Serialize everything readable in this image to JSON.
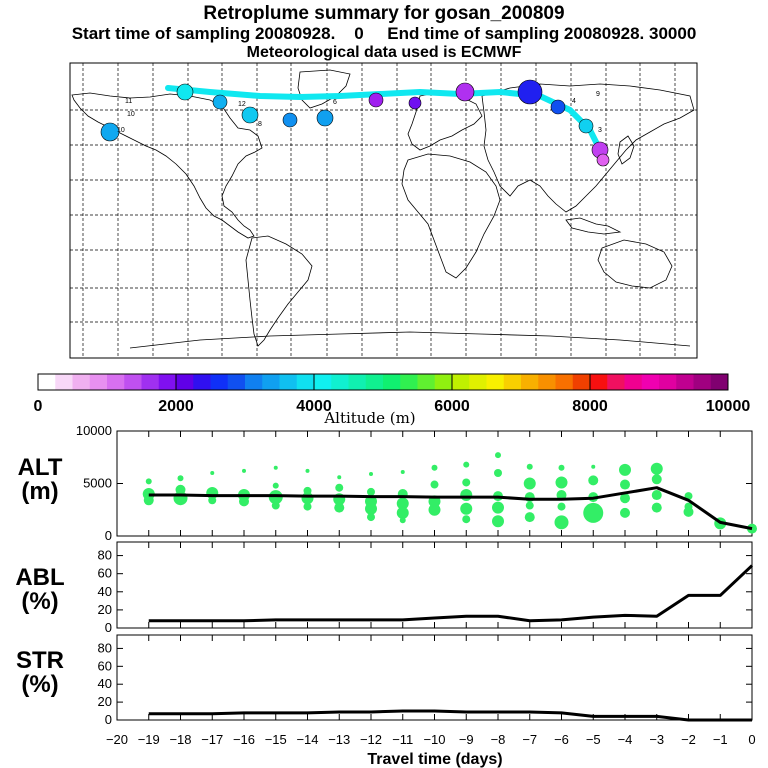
{
  "header": {
    "title": "Retroplume summary for gosan_200809",
    "line2_left": "Start time of sampling 20080928.    0",
    "line2_right": "End time of sampling 20080928. 30000",
    "line3": "Meteorological data used is ECMWF"
  },
  "colorbar": {
    "title": "Altitude (m)",
    "tick_labels": [
      "0",
      "2000",
      "4000",
      "6000",
      "8000",
      "10000"
    ],
    "tick_values": [
      0,
      2000,
      4000,
      6000,
      8000,
      10000
    ],
    "colors": [
      "#ffffff",
      "#f8d8f8",
      "#f0b0f0",
      "#e890f0",
      "#d870f0",
      "#c050f0",
      "#a030f0",
      "#8010f0",
      "#6000e8",
      "#3010f0",
      "#1030f8",
      "#1050f0",
      "#1080f0",
      "#10a0f0",
      "#10c0f0",
      "#10e0f0",
      "#10f0f0",
      "#10f0d0",
      "#10f0b0",
      "#10f090",
      "#10f070",
      "#30f050",
      "#60f030",
      "#90f010",
      "#c0f000",
      "#e0f000",
      "#f8f000",
      "#f8d000",
      "#f8b000",
      "#f89000",
      "#f87000",
      "#f04000",
      "#f81010",
      "#f01060",
      "#f00090",
      "#f000b0",
      "#e000a0",
      "#c00090",
      "#a00080",
      "#800070"
    ]
  },
  "charts": {
    "x_ticks": [
      -20,
      -19,
      -18,
      -17,
      -16,
      -15,
      -14,
      -13,
      -12,
      -11,
      -10,
      -9,
      -8,
      -7,
      -6,
      -5,
      -4,
      -3,
      -2,
      -1,
      0
    ],
    "x_label": "Travel time (days)",
    "alt": {
      "label_top": "ALT",
      "label_bottom": "(m)",
      "y_ticks": [
        "0",
        "5000",
        "10000"
      ],
      "y_values": [
        0,
        5000,
        10000
      ],
      "ylim": [
        0,
        10000
      ],
      "line_color": "#000000",
      "dot_color": "#33ee66",
      "line": {
        "x": [
          -19,
          -18,
          -17,
          -16,
          -15,
          -14,
          -13,
          -12,
          -11,
          -10,
          -9,
          -8,
          -7,
          -6,
          -5,
          -4,
          -3,
          -2,
          -1,
          0
        ],
        "y": [
          3900,
          3900,
          3850,
          3850,
          3850,
          3800,
          3800,
          3750,
          3750,
          3700,
          3700,
          3700,
          3500,
          3500,
          3600,
          4100,
          4600,
          3400,
          1300,
          700
        ]
      },
      "dots": [
        [
          -19,
          5200,
          3
        ],
        [
          -19,
          4000,
          6
        ],
        [
          -19,
          3400,
          5
        ],
        [
          -18,
          5500,
          3
        ],
        [
          -18,
          4400,
          5
        ],
        [
          -18,
          3600,
          7
        ],
        [
          -17,
          6000,
          2
        ],
        [
          -17,
          4100,
          6
        ],
        [
          -17,
          3400,
          4
        ],
        [
          -16,
          6200,
          2
        ],
        [
          -16,
          3900,
          6
        ],
        [
          -16,
          3300,
          5
        ],
        [
          -15,
          6500,
          2
        ],
        [
          -15,
          4800,
          3
        ],
        [
          -15,
          3700,
          7
        ],
        [
          -15,
          2900,
          4
        ],
        [
          -14,
          6200,
          2
        ],
        [
          -14,
          4300,
          4
        ],
        [
          -14,
          3600,
          6
        ],
        [
          -14,
          2800,
          4
        ],
        [
          -13,
          5600,
          2
        ],
        [
          -13,
          4600,
          4
        ],
        [
          -13,
          3500,
          6
        ],
        [
          -13,
          2700,
          5
        ],
        [
          -12,
          5900,
          2
        ],
        [
          -12,
          4200,
          4
        ],
        [
          -12,
          3300,
          6
        ],
        [
          -12,
          2600,
          6
        ],
        [
          -12,
          1800,
          4
        ],
        [
          -11,
          6100,
          2
        ],
        [
          -11,
          4000,
          5
        ],
        [
          -11,
          3100,
          6
        ],
        [
          -11,
          2200,
          6
        ],
        [
          -11,
          1500,
          3
        ],
        [
          -10,
          6500,
          3
        ],
        [
          -10,
          4900,
          4
        ],
        [
          -10,
          3300,
          6
        ],
        [
          -10,
          2500,
          6
        ],
        [
          -9,
          6800,
          3
        ],
        [
          -9,
          5100,
          4
        ],
        [
          -9,
          3900,
          6
        ],
        [
          -9,
          2600,
          6
        ],
        [
          -9,
          1600,
          4
        ],
        [
          -8,
          7700,
          3
        ],
        [
          -8,
          6000,
          4
        ],
        [
          -8,
          3800,
          5
        ],
        [
          -8,
          2700,
          6
        ],
        [
          -8,
          1400,
          6
        ],
        [
          -7,
          6600,
          3
        ],
        [
          -7,
          5000,
          6
        ],
        [
          -7,
          3700,
          5
        ],
        [
          -7,
          2900,
          4
        ],
        [
          -7,
          1800,
          5
        ],
        [
          -6,
          6500,
          3
        ],
        [
          -6,
          5100,
          6
        ],
        [
          -6,
          3900,
          5
        ],
        [
          -6,
          2800,
          4
        ],
        [
          -6,
          1300,
          7
        ],
        [
          -5,
          6600,
          2
        ],
        [
          -5,
          5300,
          5
        ],
        [
          -5,
          3700,
          5
        ],
        [
          -5,
          2200,
          10
        ],
        [
          -4,
          6300,
          6
        ],
        [
          -4,
          4900,
          5
        ],
        [
          -4,
          3600,
          5
        ],
        [
          -4,
          2200,
          5
        ],
        [
          -3,
          6400,
          6
        ],
        [
          -3,
          5400,
          5
        ],
        [
          -3,
          3900,
          5
        ],
        [
          -3,
          2700,
          5
        ],
        [
          -2,
          3800,
          4
        ],
        [
          -2,
          2800,
          4
        ],
        [
          -2,
          2300,
          5
        ],
        [
          -1,
          1200,
          6
        ],
        [
          -1,
          1000,
          3
        ],
        [
          0,
          700,
          5
        ]
      ]
    },
    "abl": {
      "label_top": "ABL",
      "label_bottom": "(%)",
      "y_ticks": [
        "0",
        "20",
        "40",
        "60",
        "80"
      ],
      "y_values": [
        0,
        20,
        40,
        60,
        80
      ],
      "ylim": [
        0,
        95
      ],
      "line": {
        "x": [
          -19,
          -18,
          -17,
          -16,
          -15,
          -14,
          -13,
          -12,
          -11,
          -10,
          -9,
          -8,
          -7,
          -6,
          -5,
          -4,
          -3,
          -2,
          -1,
          0
        ],
        "y": [
          8,
          8,
          8,
          8,
          9,
          9,
          9,
          9,
          9,
          11,
          13,
          13,
          8,
          9,
          12,
          14,
          13,
          36,
          36,
          69
        ]
      }
    },
    "str": {
      "label_top": "STR",
      "label_bottom": "(%)",
      "y_ticks": [
        "0",
        "20",
        "40",
        "60",
        "80"
      ],
      "y_values": [
        0,
        20,
        40,
        60,
        80
      ],
      "ylim": [
        0,
        95
      ],
      "line": {
        "x": [
          -19,
          -18,
          -17,
          -16,
          -15,
          -14,
          -13,
          -12,
          -11,
          -10,
          -9,
          -8,
          -7,
          -6,
          -5,
          -4,
          -3,
          -2,
          -1,
          0
        ],
        "y": [
          7,
          7,
          7,
          8,
          8,
          8,
          9,
          9,
          10,
          10,
          9,
          9,
          9,
          8,
          4,
          4,
          4,
          0,
          0,
          0
        ]
      }
    }
  },
  "map": {
    "trajectory_color": "#10e8f0",
    "labels": [
      "11",
      "10",
      "10",
      "12",
      "8",
      "6",
      "9",
      "4",
      "3"
    ]
  }
}
